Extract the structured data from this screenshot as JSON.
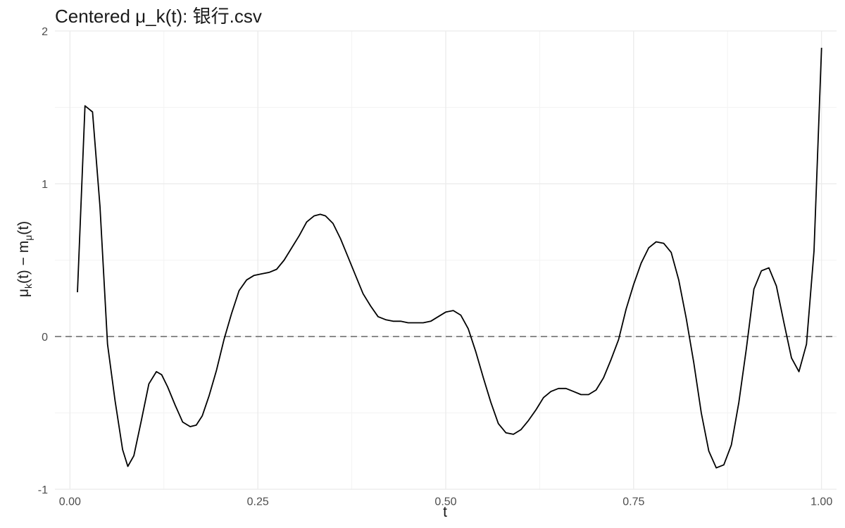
{
  "chart_data": {
    "type": "line",
    "title": "Centered μ_k(t): 银行.csv",
    "xlabel": "t",
    "ylabel_parts": {
      "mu": "μ",
      "k": "k",
      "mid": "(t) − m",
      "sub": "μ",
      "end": "(t)"
    },
    "xlim": [
      -0.02,
      1.02
    ],
    "ylim": [
      -1.0,
      2.0
    ],
    "x_ticks": [
      0.0,
      0.25,
      0.5,
      0.75,
      1.0
    ],
    "x_tick_labels": [
      "0.00",
      "0.25",
      "0.50",
      "0.75",
      "1.00"
    ],
    "y_ticks": [
      -1,
      0,
      1,
      2
    ],
    "y_tick_labels": [
      "-1",
      "0",
      "1",
      "2"
    ],
    "grid": true,
    "reference_line": {
      "y": 0,
      "style": "dashed",
      "color": "#666666"
    },
    "line_color": "#000000",
    "series": [
      {
        "x": [
          0.01,
          0.02,
          0.03,
          0.04,
          0.05,
          0.06,
          0.07,
          0.077,
          0.085,
          0.095,
          0.105,
          0.115,
          0.122,
          0.13,
          0.14,
          0.15,
          0.16,
          0.168,
          0.176,
          0.185,
          0.195,
          0.205,
          0.215,
          0.225,
          0.235,
          0.245,
          0.255,
          0.265,
          0.275,
          0.285,
          0.295,
          0.305,
          0.315,
          0.325,
          0.333,
          0.34,
          0.35,
          0.36,
          0.37,
          0.38,
          0.39,
          0.4,
          0.41,
          0.42,
          0.43,
          0.44,
          0.45,
          0.46,
          0.47,
          0.48,
          0.49,
          0.5,
          0.51,
          0.52,
          0.53,
          0.54,
          0.55,
          0.56,
          0.57,
          0.58,
          0.59,
          0.6,
          0.61,
          0.62,
          0.63,
          0.64,
          0.65,
          0.66,
          0.67,
          0.68,
          0.69,
          0.7,
          0.71,
          0.72,
          0.73,
          0.74,
          0.75,
          0.76,
          0.77,
          0.78,
          0.79,
          0.8,
          0.81,
          0.82,
          0.83,
          0.84,
          0.85,
          0.86,
          0.87,
          0.88,
          0.89,
          0.9,
          0.91,
          0.92,
          0.93,
          0.94,
          0.95,
          0.96,
          0.97,
          0.98,
          0.99,
          1.0
        ],
        "y": [
          0.29,
          1.51,
          1.47,
          0.85,
          -0.05,
          -0.42,
          -0.74,
          -0.85,
          -0.78,
          -0.55,
          -0.31,
          -0.23,
          -0.25,
          -0.33,
          -0.45,
          -0.56,
          -0.59,
          -0.58,
          -0.52,
          -0.39,
          -0.22,
          -0.02,
          0.15,
          0.3,
          0.37,
          0.4,
          0.41,
          0.42,
          0.44,
          0.5,
          0.58,
          0.66,
          0.75,
          0.79,
          0.8,
          0.79,
          0.74,
          0.64,
          0.52,
          0.4,
          0.28,
          0.2,
          0.13,
          0.11,
          0.1,
          0.1,
          0.09,
          0.09,
          0.09,
          0.1,
          0.13,
          0.16,
          0.17,
          0.14,
          0.05,
          -0.1,
          -0.27,
          -0.43,
          -0.57,
          -0.63,
          -0.64,
          -0.61,
          -0.55,
          -0.48,
          -0.4,
          -0.36,
          -0.34,
          -0.34,
          -0.36,
          -0.38,
          -0.38,
          -0.35,
          -0.27,
          -0.15,
          -0.02,
          0.18,
          0.34,
          0.48,
          0.58,
          0.62,
          0.61,
          0.55,
          0.37,
          0.12,
          -0.17,
          -0.5,
          -0.75,
          -0.86,
          -0.84,
          -0.71,
          -0.43,
          -0.08,
          0.31,
          0.43,
          0.45,
          0.33,
          0.09,
          -0.14,
          -0.23,
          -0.05,
          0.56,
          1.89
        ]
      }
    ]
  }
}
